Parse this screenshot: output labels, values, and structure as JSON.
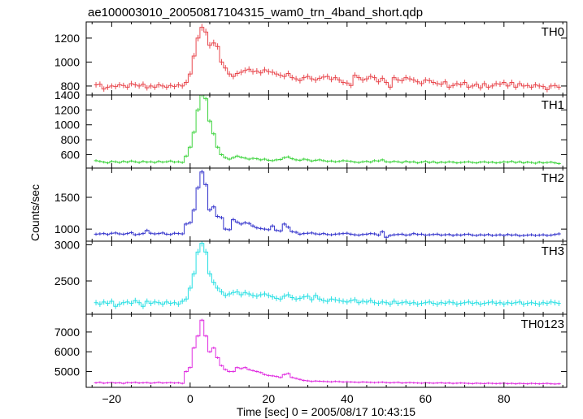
{
  "chart_data": {
    "type": "line",
    "title": "ae100003010_20050817104315_wam0_trn_4band_short.qdp",
    "xlabel": "Time [sec] 0 = 2005/08/17 10:43:15",
    "ylabel": "Counts/sec",
    "xlim": [
      -26.5,
      96
    ],
    "xticks": [
      -20,
      0,
      20,
      40,
      60,
      80
    ],
    "x": [
      -24,
      -23,
      -22,
      -21,
      -20,
      -19,
      -18,
      -17,
      -16,
      -15,
      -14,
      -13,
      -12,
      -11,
      -10,
      -9,
      -8,
      -7,
      -6,
      -5,
      -4,
      -3,
      -2,
      -1,
      0,
      1,
      2,
      3,
      4,
      5,
      6,
      7,
      8,
      9,
      10,
      11,
      12,
      13,
      14,
      15,
      16,
      17,
      18,
      19,
      20,
      21,
      22,
      23,
      24,
      25,
      26,
      27,
      28,
      29,
      30,
      31,
      32,
      33,
      34,
      35,
      36,
      37,
      38,
      39,
      40,
      41,
      42,
      43,
      44,
      45,
      46,
      47,
      48,
      49,
      50,
      51,
      52,
      53,
      54,
      55,
      56,
      57,
      58,
      59,
      60,
      61,
      62,
      63,
      64,
      65,
      66,
      67,
      68,
      69,
      70,
      71,
      72,
      73,
      74,
      75,
      76,
      77,
      78,
      79,
      80,
      81,
      82,
      83,
      84,
      85,
      86,
      87,
      88,
      89,
      90,
      91,
      92,
      93,
      94
    ],
    "panels": [
      {
        "name": "TH0",
        "color": "#e8474d",
        "ylim": [
          725,
          1335
        ],
        "yticks": [
          800,
          1000,
          1200
        ],
        "values": [
          810,
          815,
          775,
          790,
          800,
          795,
          810,
          805,
          790,
          820,
          810,
          800,
          815,
          785,
          800,
          790,
          810,
          800,
          790,
          805,
          795,
          810,
          800,
          830,
          900,
          1050,
          1200,
          1290,
          1250,
          1140,
          1160,
          1130,
          1000,
          950,
          900,
          880,
          905,
          915,
          930,
          940,
          920,
          925,
          910,
          935,
          920,
          915,
          900,
          890,
          880,
          905,
          870,
          860,
          845,
          870,
          880,
          860,
          850,
          865,
          875,
          880,
          855,
          870,
          850,
          830,
          825,
          805,
          890,
          870,
          850,
          860,
          880,
          870,
          835,
          865,
          830,
          790,
          870,
          850,
          845,
          870,
          860,
          850,
          835,
          820,
          850,
          845,
          830,
          820,
          815,
          835,
          790,
          805,
          820,
          810,
          830,
          790,
          800,
          815,
          785,
          820,
          790,
          800,
          820,
          815,
          830,
          800,
          830,
          790,
          820,
          800,
          805,
          790,
          810,
          800,
          795,
          770,
          800,
          805,
          790
        ]
      },
      {
        "name": "TH1",
        "color": "#3fd43f",
        "ylim": [
          420,
          1400
        ],
        "yticks": [
          600,
          800,
          1000,
          1200,
          1400
        ],
        "values": [
          520,
          510,
          500,
          490,
          510,
          505,
          495,
          510,
          500,
          515,
          505,
          495,
          510,
          500,
          505,
          495,
          510,
          500,
          505,
          515,
          500,
          505,
          495,
          580,
          700,
          900,
          1200,
          1400,
          1350,
          1050,
          880,
          700,
          600,
          560,
          540,
          560,
          580,
          565,
          555,
          540,
          550,
          545,
          530,
          540,
          525,
          520,
          530,
          535,
          560,
          570,
          545,
          530,
          525,
          540,
          530,
          515,
          525,
          530,
          520,
          510,
          515,
          505,
          510,
          520,
          515,
          510,
          500,
          495,
          505,
          510,
          500,
          520,
          515,
          530,
          505,
          500,
          510,
          505,
          495,
          510,
          500,
          505,
          490,
          500,
          510,
          495,
          505,
          490,
          500,
          495,
          505,
          500,
          490,
          495,
          500,
          505,
          495,
          490,
          500,
          505,
          495,
          500,
          490,
          495,
          505,
          500,
          510,
          495,
          505,
          490,
          500,
          495,
          485,
          500,
          490,
          495,
          500,
          490,
          480
        ]
      },
      {
        "name": "TH2",
        "color": "#3333cc",
        "ylim": [
          810,
          1960
        ],
        "yticks": [
          1000,
          1500
        ],
        "values": [
          920,
          925,
          930,
          915,
          935,
          940,
          925,
          920,
          930,
          945,
          910,
          920,
          930,
          980,
          935,
          925,
          930,
          940,
          920,
          915,
          935,
          930,
          925,
          1080,
          1100,
          1300,
          1650,
          1900,
          1700,
          1300,
          1350,
          1200,
          1180,
          1000,
          990,
          1150,
          1110,
          1080,
          1100,
          1090,
          1050,
          1020,
          1010,
          1000,
          990,
          1050,
          980,
          970,
          1080,
          1030,
          960,
          950,
          920,
          930,
          935,
          940,
          925,
          920,
          930,
          915,
          910,
          920,
          925,
          930,
          935,
          920,
          910,
          905,
          915,
          920,
          930,
          925,
          905,
          960,
          870,
          900,
          910,
          915,
          920,
          905,
          910,
          930,
          915,
          920,
          905,
          910,
          915,
          920,
          905,
          910,
          915,
          900,
          910,
          905,
          915,
          920,
          905,
          900,
          910,
          905,
          915,
          900,
          905,
          910,
          900,
          915,
          905,
          910,
          895,
          900,
          905,
          910,
          900,
          905,
          910,
          900,
          905,
          915,
          925
        ]
      },
      {
        "name": "TH3",
        "color": "#26dfe3",
        "ylim": [
          2040,
          3050
        ],
        "yticks": [
          2500,
          3000
        ],
        "values": [
          2200,
          2180,
          2210,
          2190,
          2220,
          2150,
          2180,
          2200,
          2210,
          2190,
          2230,
          2200,
          2150,
          2220,
          2190,
          2210,
          2200,
          2180,
          2210,
          2190,
          2200,
          2180,
          2220,
          2250,
          2400,
          2600,
          2900,
          3020,
          2900,
          2600,
          2480,
          2400,
          2350,
          2300,
          2320,
          2340,
          2350,
          2310,
          2340,
          2320,
          2300,
          2290,
          2310,
          2320,
          2300,
          2280,
          2260,
          2250,
          2290,
          2310,
          2270,
          2250,
          2260,
          2280,
          2290,
          2240,
          2300,
          2250,
          2230,
          2220,
          2250,
          2240,
          2230,
          2220,
          2210,
          2230,
          2240,
          2200,
          2220,
          2210,
          2230,
          2200,
          2190,
          2210,
          2200,
          2180,
          2220,
          2190,
          2200,
          2210,
          2190,
          2200,
          2180,
          2190,
          2200,
          2210,
          2190,
          2180,
          2200,
          2190,
          2210,
          2200,
          2180,
          2190,
          2200,
          2210,
          2190,
          2200,
          2180,
          2190,
          2200,
          2210,
          2190,
          2200,
          2180,
          2200,
          2190,
          2200,
          2210,
          2180,
          2190,
          2200,
          2190,
          2180,
          2200,
          2190,
          2210,
          2200,
          2190
        ]
      },
      {
        "name": "TH0123",
        "color": "#e02ee0",
        "ylim": [
          4200,
          7900
        ],
        "yticks": [
          5000,
          6000,
          7000
        ],
        "values": [
          4430,
          4450,
          4410,
          4430,
          4440,
          4420,
          4430,
          4400,
          4440,
          4430,
          4450,
          4420,
          4430,
          4440,
          4410,
          4430,
          4450,
          4420,
          4430,
          4440,
          4420,
          4430,
          4400,
          5000,
          5200,
          6200,
          6800,
          7600,
          6800,
          6000,
          6200,
          5700,
          5300,
          5100,
          5000,
          5000,
          5200,
          5150,
          5200,
          5100,
          5050,
          5000,
          4950,
          4850,
          4800,
          4780,
          4750,
          4700,
          4850,
          4900,
          4700,
          4650,
          4600,
          4550,
          4530,
          4500,
          4520,
          4510,
          4500,
          4490,
          4480,
          4500,
          4490,
          4470,
          4480,
          4470,
          4460,
          4450,
          4470,
          4460,
          4450,
          4440,
          4450,
          4460,
          4440,
          4430,
          4440,
          4450,
          4420,
          4430,
          4440,
          4430,
          4420,
          4410,
          4430,
          4420,
          4410,
          4420,
          4430,
          4410,
          4420,
          4400,
          4410,
          4420,
          4410,
          4400,
          4390,
          4410,
          4400,
          4390,
          4410,
          4400,
          4390,
          4400,
          4410,
          4390,
          4400,
          4380,
          4400,
          4390,
          4380,
          4400,
          4390,
          4380,
          4390,
          4400,
          4380,
          4370,
          4380
        ]
      }
    ]
  }
}
